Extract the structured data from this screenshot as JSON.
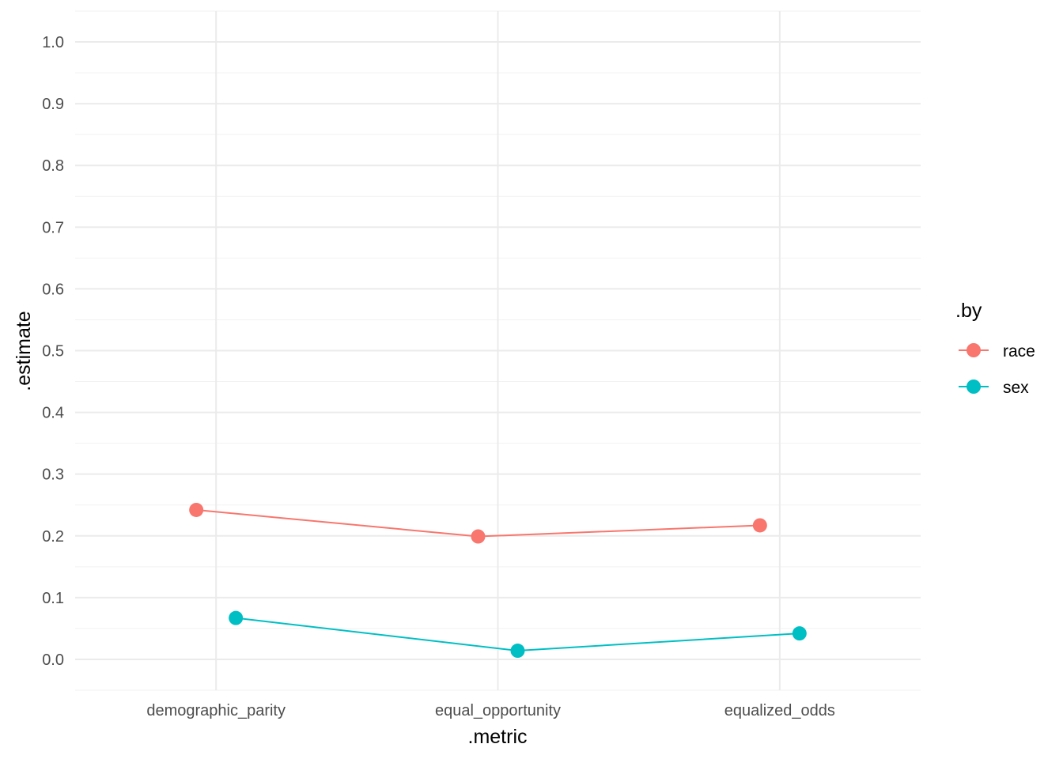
{
  "chart_data": {
    "type": "line",
    "title": "",
    "xlabel": ".metric",
    "ylabel": ".estimate",
    "categories": [
      "demographic_parity",
      "equal_opportunity",
      "equalized_odds"
    ],
    "series": [
      {
        "name": "race",
        "color": "#F8766D",
        "values": [
          0.242,
          0.199,
          0.217
        ]
      },
      {
        "name": "sex",
        "color": "#00BFC4",
        "values": [
          0.067,
          0.014,
          0.042
        ]
      }
    ],
    "ylim": [
      -0.05,
      1.05
    ],
    "yticks": [
      "0.0",
      "0.1",
      "0.2",
      "0.3",
      "0.4",
      "0.5",
      "0.6",
      "0.7",
      "0.8",
      "0.9",
      "1.0"
    ],
    "grid": true,
    "legend": {
      "title": ".by",
      "position": "right"
    },
    "point_dodge": true
  }
}
